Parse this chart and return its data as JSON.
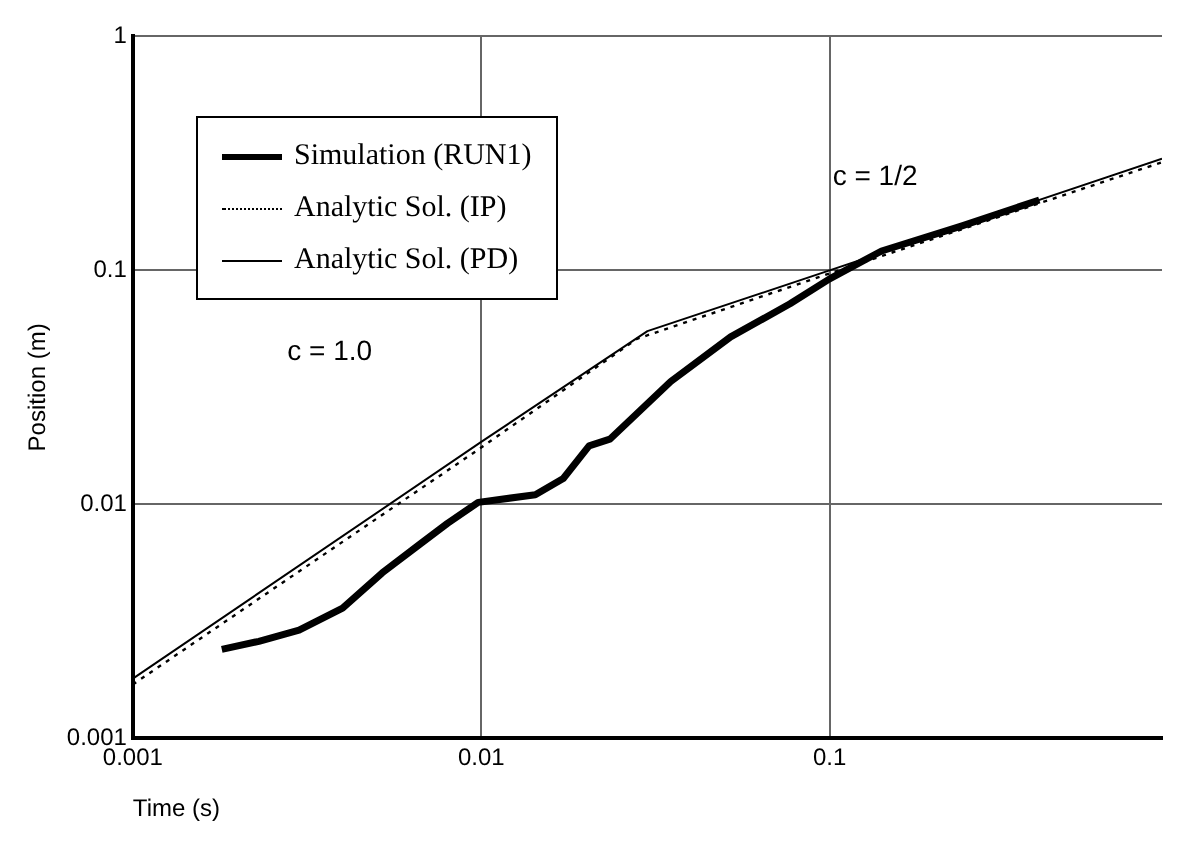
{
  "chart_data": {
    "type": "line",
    "xlabel": "Time (s)",
    "ylabel": "Position (m)",
    "log": "xy",
    "grid": true,
    "legend": "top left",
    "marker": "none",
    "xlim": [
      0.001,
      0.9
    ],
    "xticks": [
      0.001,
      0.01,
      0.1
    ],
    "ylim": [
      0.001,
      1
    ],
    "yticks": [
      0.001,
      0.01,
      0.1,
      1
    ],
    "series": [
      {
        "name": "Simulation (RUN1)",
        "color": "#000000",
        "line_style": "solid",
        "x": [
          0.0018,
          0.0023,
          0.003,
          0.004,
          0.0052,
          0.0067,
          0.008,
          0.0098,
          0.0143,
          0.0172,
          0.0204,
          0.0234,
          0.035,
          0.052,
          0.077,
          0.1,
          0.141,
          0.24,
          0.4
        ],
        "values": [
          0.0024,
          0.0026,
          0.0029,
          0.0036,
          0.0051,
          0.0068,
          0.0083,
          0.0102,
          0.011,
          0.0129,
          0.0178,
          0.019,
          0.0335,
          0.052,
          0.072,
          0.092,
          0.121,
          0.155,
          0.2
        ]
      },
      {
        "name": "Analytic Sol. (IP)",
        "color": "#000000",
        "line_style": "dotted",
        "x": [
          0.001,
          0.01,
          0.028,
          0.1,
          0.9
        ],
        "values": [
          0.0017,
          0.0175,
          0.051,
          0.097,
          0.29
        ]
      },
      {
        "name": "Analytic Sol. (PD)",
        "color": "#000000",
        "line_style": "solid",
        "x": [
          0.001,
          0.01,
          0.03,
          0.1,
          0.9
        ],
        "values": [
          0.0018,
          0.0185,
          0.055,
          0.1,
          0.3
        ]
      }
    ],
    "annotations": [
      "c = 1.0",
      "c = 1/2"
    ]
  }
}
